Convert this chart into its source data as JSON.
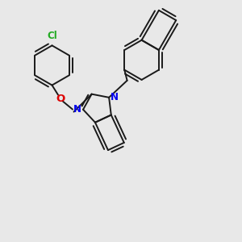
{
  "bg_color": "#e8e8e8",
  "bond_color": "#1a1a1a",
  "N_color": "#0000ee",
  "O_color": "#dd0000",
  "Cl_color": "#22aa22",
  "lw": 1.4,
  "figsize": [
    3.0,
    3.0
  ],
  "dpi": 100,
  "xlim": [
    0,
    10
  ],
  "ylim": [
    0,
    10
  ]
}
